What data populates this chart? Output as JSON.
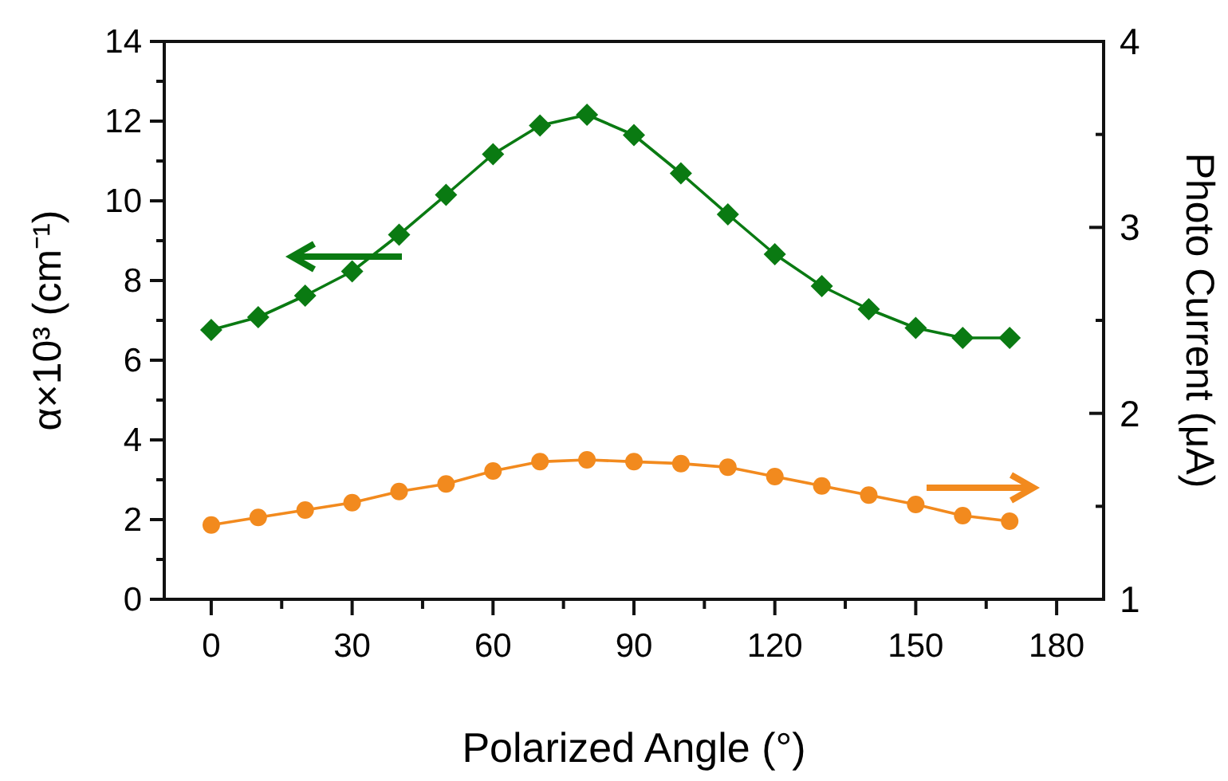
{
  "chart_data": {
    "type": "line",
    "xlabel": "Polarized Angle (°)",
    "ylabel": "α×10³ (cm⁻¹)",
    "y2label": "Photo Current (μA)",
    "x": [
      0,
      10,
      20,
      30,
      40,
      50,
      60,
      70,
      80,
      90,
      100,
      110,
      120,
      130,
      140,
      150,
      160,
      170
    ],
    "series": [
      {
        "color": "#0a7a12",
        "marker": "diamond",
        "values": [
          6.76,
          7.08,
          7.62,
          8.23,
          9.15,
          10.15,
          11.17,
          11.89,
          12.16,
          11.65,
          10.69,
          9.66,
          8.66,
          7.86,
          7.28,
          6.81,
          6.56,
          6.56
        ]
      },
      {
        "color": "#f28a1e",
        "marker": "circle",
        "axis": "y2",
        "values": [
          1.4,
          1.44,
          1.48,
          1.52,
          1.58,
          1.62,
          1.69,
          1.74,
          1.75,
          1.74,
          1.73,
          1.71,
          1.66,
          1.61,
          1.56,
          1.51,
          1.45,
          1.42
        ]
      }
    ],
    "xlim": [
      -10,
      190
    ],
    "xticks": [
      0,
      {
        "value": 15,
        "label": null
      },
      30,
      {
        "value": 45,
        "label": null
      },
      60,
      {
        "value": 75,
        "label": null
      },
      90,
      {
        "value": 105,
        "label": null
      },
      120,
      {
        "value": 135,
        "label": null
      },
      150,
      {
        "value": 165,
        "label": null
      },
      180
    ],
    "ylim": [
      0,
      14
    ],
    "yticks": [
      0,
      {
        "value": 1,
        "label": null
      },
      2,
      {
        "value": 3,
        "label": null
      },
      4,
      {
        "value": 5,
        "label": null
      },
      6,
      {
        "value": 7,
        "label": null
      },
      8,
      {
        "value": 9,
        "label": null
      },
      10,
      {
        "value": 11,
        "label": null
      },
      12,
      {
        "value": 13,
        "label": null
      },
      14
    ],
    "y2lim": [
      1,
      4
    ],
    "y2ticks": [
      1,
      {
        "value": 1.5,
        "label": null
      },
      2,
      {
        "value": 2.5,
        "label": null
      },
      3,
      {
        "value": 3.5,
        "label": null
      },
      4
    ],
    "line_style": "solid",
    "grid": false
  }
}
